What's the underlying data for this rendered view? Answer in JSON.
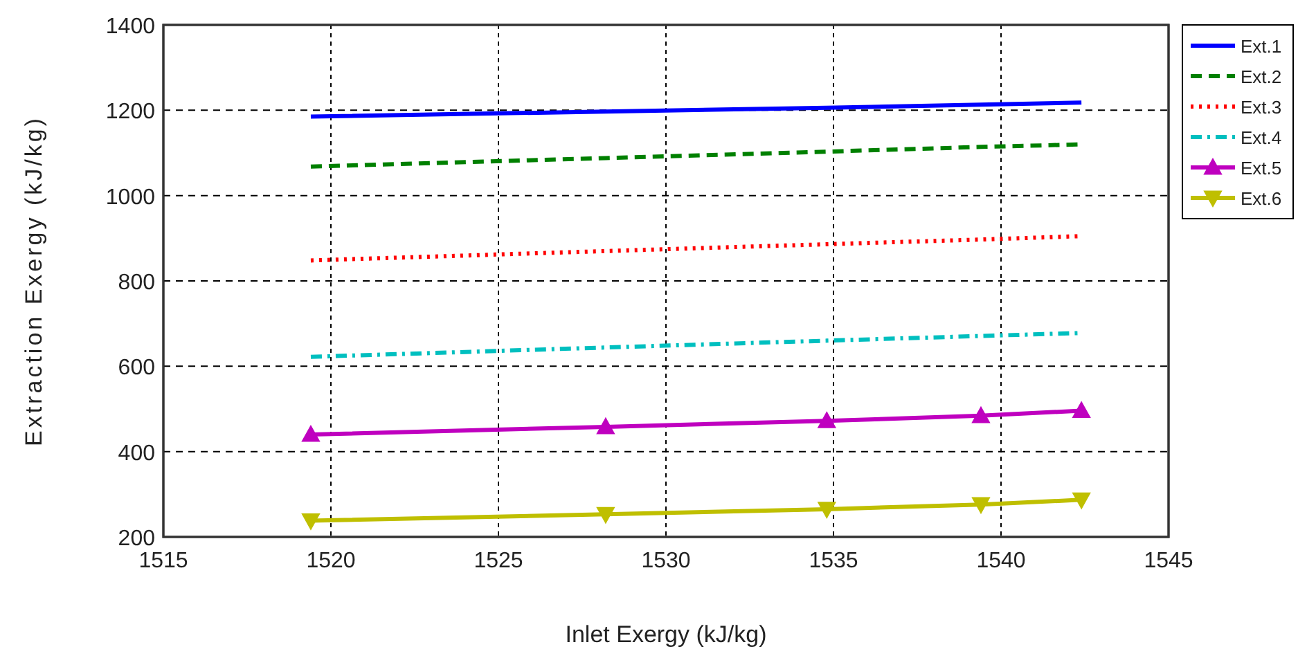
{
  "chart_data": {
    "type": "line",
    "xlabel": "Inlet Exergy (kJ/kg)",
    "ylabel": "Extraction Exergy (kJ/kg)",
    "x": [
      1519.4,
      1528.2,
      1534.8,
      1539.4,
      1542.4
    ],
    "series": [
      {
        "name": "Ext.1",
        "color": "#0000ff",
        "values": [
          1185,
          1197,
          1206,
          1213,
          1218
        ],
        "line_style": "solid",
        "marker": "none"
      },
      {
        "name": "Ext.2",
        "color": "#008000",
        "values": [
          1068,
          1088,
          1103,
          1114,
          1120
        ],
        "line_style": "dashed",
        "marker": "none"
      },
      {
        "name": "Ext.3",
        "color": "#ff0000",
        "values": [
          848,
          870,
          886,
          897,
          905
        ],
        "line_style": "dotted",
        "marker": "none"
      },
      {
        "name": "Ext.4",
        "color": "#00bfbf",
        "values": [
          622,
          644,
          660,
          671,
          678
        ],
        "line_style": "dashdot",
        "marker": "none"
      },
      {
        "name": "Ext.5",
        "color": "#bf00bf",
        "values": [
          440,
          458,
          472,
          484,
          496
        ],
        "line_style": "solid",
        "marker": "triangle"
      },
      {
        "name": "Ext.6",
        "color": "#bfbf00",
        "values": [
          238,
          253,
          265,
          276,
          287
        ],
        "line_style": "solid",
        "marker": "triangle_down"
      }
    ],
    "xlim": [
      1515,
      1545
    ],
    "xticks": [
      1515,
      1520,
      1525,
      1530,
      1535,
      1540,
      1545
    ],
    "ylim": [
      200,
      1400
    ],
    "yticks": [
      200,
      400,
      600,
      800,
      1000,
      1200,
      1400
    ],
    "grid": true,
    "legend": "top right"
  }
}
